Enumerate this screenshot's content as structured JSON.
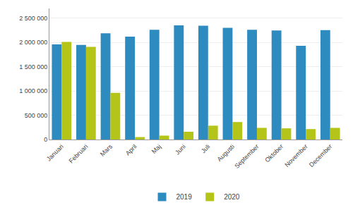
{
  "chart_data": {
    "type": "bar",
    "categories": [
      "Januari",
      "Februari",
      "Mars",
      "April",
      "Maj",
      "Juni",
      "Juli",
      "Augusti",
      "September",
      "Oktober",
      "November",
      "December"
    ],
    "series": [
      {
        "name": "2019",
        "color": "#2e8bc0",
        "values": [
          1960000,
          1950000,
          2190000,
          2120000,
          2260000,
          2350000,
          2345000,
          2300000,
          2260000,
          2245000,
          1930000,
          2255000
        ]
      },
      {
        "name": "2020",
        "color": "#b5c418",
        "values": [
          2010000,
          1910000,
          960000,
          50000,
          80000,
          160000,
          285000,
          360000,
          240000,
          230000,
          215000,
          240000
        ]
      }
    ],
    "ylim": [
      0,
      2700000
    ],
    "yticks": [
      0,
      {
        "value": 500000,
        "label": "500 000"
      },
      {
        "value": 1000000,
        "label": "1 000 000"
      },
      {
        "value": 1500000,
        "label": "1 500 000"
      },
      {
        "value": 2000000,
        "label": "2 000 000"
      },
      {
        "value": 2500000,
        "label": "2 500 000"
      }
    ],
    "grid": true,
    "legend": "bottom"
  }
}
